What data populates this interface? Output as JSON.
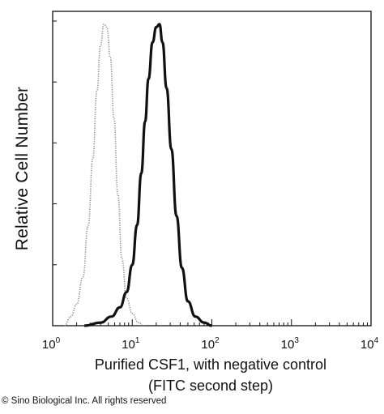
{
  "chart_data": {
    "type": "area",
    "ylabel": "Relative Cell Number",
    "xlabel_line1": "Purified CSF1, with negative control",
    "xlabel_line2": "(FITC second step)",
    "x_scale": "log",
    "xlim": [
      1,
      10000
    ],
    "ylim": [
      0,
      1
    ],
    "x_ticks": [
      {
        "value": 1,
        "base": "10",
        "exp": "0"
      },
      {
        "value": 10,
        "base": "10",
        "exp": "1"
      },
      {
        "value": 100,
        "base": "10",
        "exp": "2"
      },
      {
        "value": 1000,
        "base": "10",
        "exp": "3"
      },
      {
        "value": 10000,
        "base": "10",
        "exp": "4"
      }
    ],
    "grid": false,
    "series": [
      {
        "color": "#8a8a8a",
        "style": "dotted",
        "points": [
          {
            "x": 1.4,
            "y": 0.0
          },
          {
            "x": 1.7,
            "y": 0.03
          },
          {
            "x": 2.0,
            "y": 0.07
          },
          {
            "x": 2.4,
            "y": 0.16
          },
          {
            "x": 2.8,
            "y": 0.33
          },
          {
            "x": 3.2,
            "y": 0.55
          },
          {
            "x": 3.6,
            "y": 0.77
          },
          {
            "x": 4.0,
            "y": 0.92
          },
          {
            "x": 4.4,
            "y": 0.99
          },
          {
            "x": 4.8,
            "y": 0.98
          },
          {
            "x": 5.3,
            "y": 0.88
          },
          {
            "x": 5.9,
            "y": 0.68
          },
          {
            "x": 6.6,
            "y": 0.43
          },
          {
            "x": 7.4,
            "y": 0.22
          },
          {
            "x": 8.5,
            "y": 0.09
          },
          {
            "x": 10.0,
            "y": 0.04
          },
          {
            "x": 12.0,
            "y": 0.01
          },
          {
            "x": 14.0,
            "y": 0.0
          }
        ]
      },
      {
        "color": "#111111",
        "style": "solid",
        "points": [
          {
            "x": 2.5,
            "y": 0.0
          },
          {
            "x": 4.0,
            "y": 0.01
          },
          {
            "x": 5.5,
            "y": 0.03
          },
          {
            "x": 7.0,
            "y": 0.06
          },
          {
            "x": 8.5,
            "y": 0.11
          },
          {
            "x": 10.0,
            "y": 0.2
          },
          {
            "x": 11.5,
            "y": 0.33
          },
          {
            "x": 13.0,
            "y": 0.5
          },
          {
            "x": 14.5,
            "y": 0.67
          },
          {
            "x": 16.0,
            "y": 0.81
          },
          {
            "x": 18.0,
            "y": 0.93
          },
          {
            "x": 20.0,
            "y": 0.98
          },
          {
            "x": 22.0,
            "y": 0.99
          },
          {
            "x": 24.0,
            "y": 0.93
          },
          {
            "x": 27.0,
            "y": 0.78
          },
          {
            "x": 31.0,
            "y": 0.58
          },
          {
            "x": 36.0,
            "y": 0.36
          },
          {
            "x": 42.0,
            "y": 0.19
          },
          {
            "x": 50.0,
            "y": 0.08
          },
          {
            "x": 62.0,
            "y": 0.03
          },
          {
            "x": 80.0,
            "y": 0.01
          },
          {
            "x": 100.0,
            "y": 0.0
          }
        ]
      }
    ]
  },
  "copyright": "© Sino Biological Inc. All rights reserved"
}
